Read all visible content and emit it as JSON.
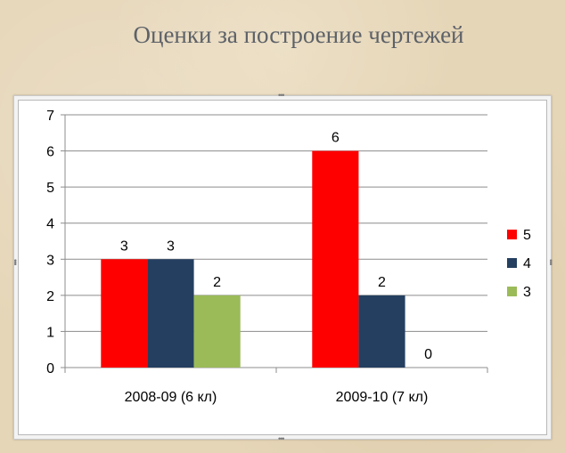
{
  "slide": {
    "title": "Оценки за построение чертежей"
  },
  "chart_data": {
    "type": "bar",
    "title": "",
    "categories": [
      "2008-09 (6 кл)",
      "2009-10 (7 кл)"
    ],
    "series": [
      {
        "name": "5",
        "values": [
          3,
          6
        ],
        "color": "#ff0000"
      },
      {
        "name": "4",
        "values": [
          3,
          2
        ],
        "color": "#243f60"
      },
      {
        "name": "3",
        "values": [
          2,
          0
        ],
        "color": "#9bbb59"
      }
    ],
    "ylim": [
      0,
      7
    ],
    "yticks": [
      0,
      1,
      2,
      3,
      4,
      5,
      6,
      7
    ],
    "grid": true,
    "legend": "right",
    "data_labels": true
  }
}
